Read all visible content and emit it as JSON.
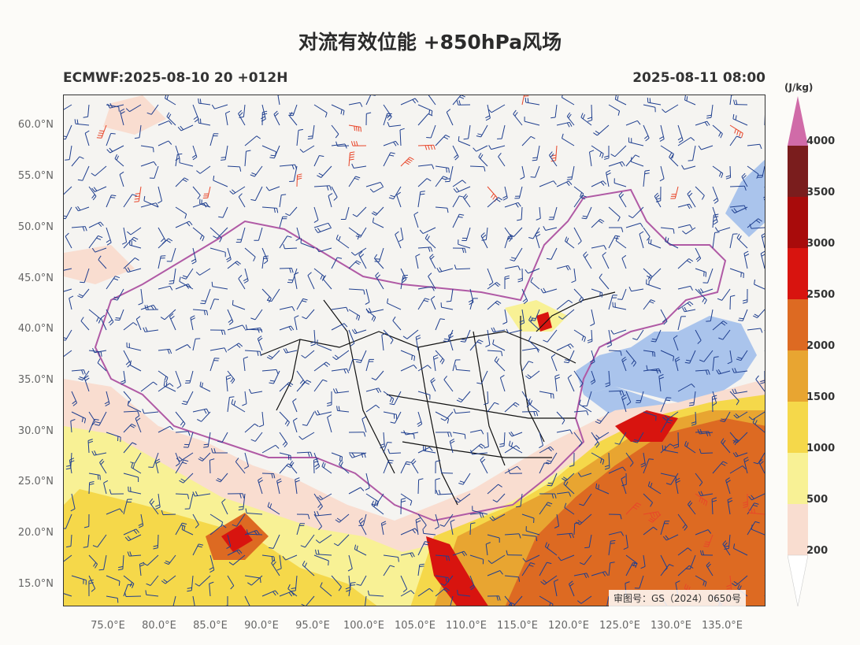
{
  "header": {
    "title": "对流有效位能 +850hPa风场",
    "model_run": "ECMWF:2025-08-10 20 +012H",
    "valid_time": "2025-08-11 08:00"
  },
  "map": {
    "lat_labels": [
      "60.0°N",
      "55.0°N",
      "50.0°N",
      "45.0°N",
      "40.0°N",
      "35.0°N",
      "30.0°N",
      "25.0°N",
      "20.0°N",
      "15.0°N"
    ],
    "lon_labels": [
      "75.0°E",
      "80.0°E",
      "85.0°E",
      "90.0°E",
      "95.0°E",
      "100.0°E",
      "105.0°E",
      "110.0°E",
      "115.0°E",
      "120.0°E",
      "125.0°E",
      "130.0°E",
      "135.0°E"
    ],
    "extent": {
      "lon_min": 70.5,
      "lon_max": 139,
      "lat_min": 13,
      "lat_max": 63
    },
    "approval_stamp": "审图号：GS（2024）0650号",
    "colors": {
      "land": "#f5f4f1",
      "ocean": "#aac4ec",
      "wind_barb": "#1f3f8f",
      "strong_wind": "#e8462a",
      "province": "#111111",
      "border": "#b05aa5"
    }
  },
  "colorbar": {
    "unit": "(J/kg)",
    "levels": [
      "4000",
      "3500",
      "3000",
      "2500",
      "2000",
      "1500",
      "1000",
      "500",
      "200"
    ],
    "colors": [
      "#d06ba8",
      "#7a1d1d",
      "#a80b0b",
      "#d8140f",
      "#dd6a22",
      "#e8a531",
      "#f5d84a",
      "#f8f195",
      "#f9ddd0"
    ]
  }
}
